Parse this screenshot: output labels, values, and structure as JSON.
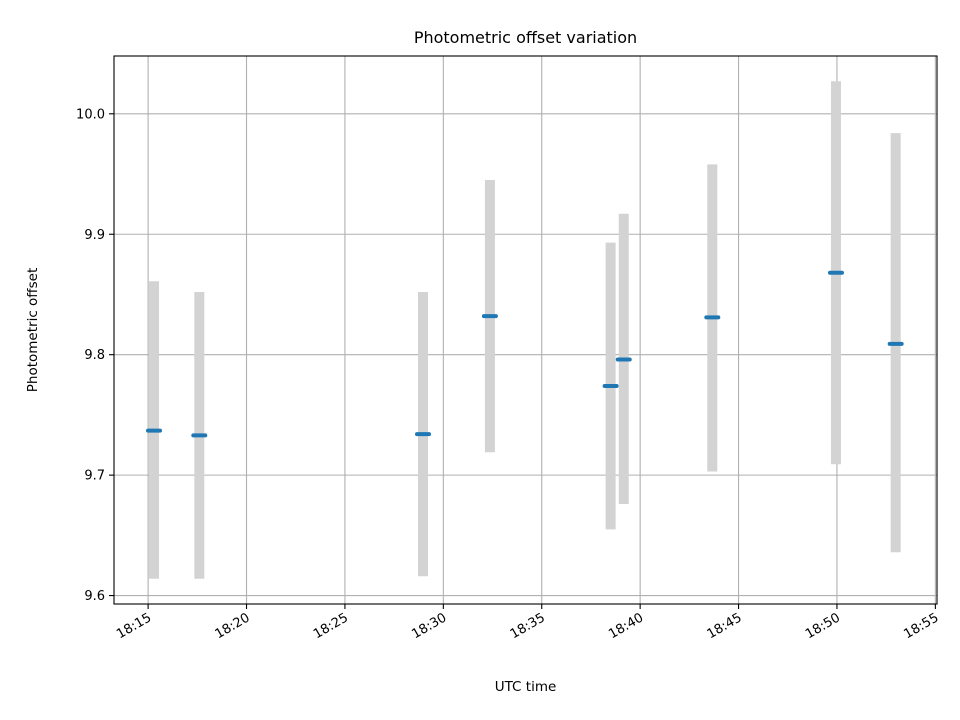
{
  "chart_data": {
    "type": "scatter",
    "title": "Photometric offset variation",
    "xlabel": "UTC time",
    "ylabel": "Photometric offset",
    "x_ticks": [
      "18:15",
      "18:20",
      "18:25",
      "18:30",
      "18:35",
      "18:40",
      "18:45",
      "18:50",
      "18:55"
    ],
    "y_ticks": [
      "9.6",
      "9.7",
      "9.8",
      "9.9",
      "10.0"
    ],
    "xlim": [
      "18:13:16",
      "18:55:05"
    ],
    "ylim": [
      9.593,
      10.048
    ],
    "grid": true,
    "points": [
      {
        "x": "18:15:18",
        "y": 9.737,
        "yerr_low": 9.614,
        "yerr_high": 9.861
      },
      {
        "x": "18:17:36",
        "y": 9.733,
        "yerr_low": 9.614,
        "yerr_high": 9.852
      },
      {
        "x": "18:28:58",
        "y": 9.734,
        "yerr_low": 9.616,
        "yerr_high": 9.852
      },
      {
        "x": "18:32:22",
        "y": 9.832,
        "yerr_low": 9.719,
        "yerr_high": 9.945
      },
      {
        "x": "18:38:30",
        "y": 9.774,
        "yerr_low": 9.655,
        "yerr_high": 9.893
      },
      {
        "x": "18:39:10",
        "y": 9.796,
        "yerr_low": 9.676,
        "yerr_high": 9.917
      },
      {
        "x": "18:43:40",
        "y": 9.831,
        "yerr_low": 9.703,
        "yerr_high": 9.958
      },
      {
        "x": "18:49:57",
        "y": 9.868,
        "yerr_low": 9.709,
        "yerr_high": 10.027
      },
      {
        "x": "18:52:59",
        "y": 9.809,
        "yerr_low": 9.636,
        "yerr_high": 9.984
      }
    ],
    "colors": {
      "point": "#1f77b4",
      "errorbar": "#d3d3d3",
      "grid": "#b0b0b0",
      "axes": "#000000"
    }
  }
}
